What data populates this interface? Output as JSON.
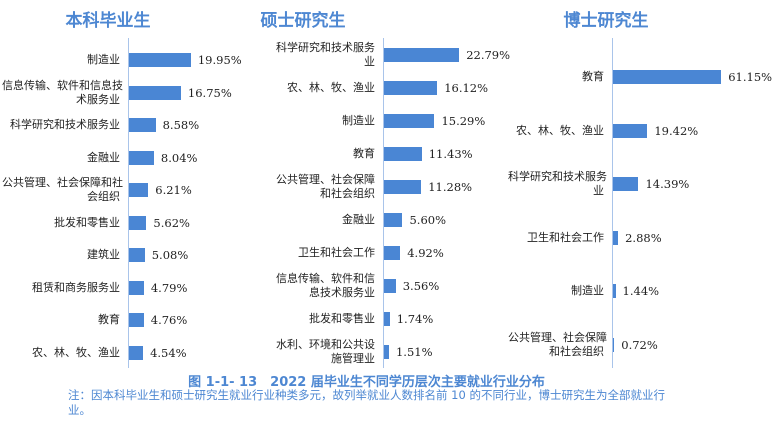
{
  "colors": {
    "bar": "#4a86d4",
    "title": "#4d87d2"
  },
  "chart_data": [
    {
      "type": "bar",
      "orientation": "horizontal",
      "title": "本科毕业生",
      "categories": [
        "制造业",
        "信息传输、软件和信息技术服务业",
        "科学研究和技术服务业",
        "金融业",
        "公共管理、社会保障和社会组织",
        "批发和零售业",
        "建筑业",
        "租赁和商务服务业",
        "教育",
        "农、林、牧、渔业"
      ],
      "values": [
        19.95,
        16.75,
        8.58,
        8.04,
        6.21,
        5.62,
        5.08,
        4.79,
        4.76,
        4.54
      ],
      "labels": [
        "19.95%",
        "16.75%",
        "8.58%",
        "8.04%",
        "6.21%",
        "5.62%",
        "5.08%",
        "4.79%",
        "4.76%",
        "4.54%"
      ],
      "unit": "%"
    },
    {
      "type": "bar",
      "orientation": "horizontal",
      "title": "硕士研究生",
      "categories": [
        "科学研究和技术服务业",
        "农、林、牧、渔业",
        "制造业",
        "教育",
        "公共管理、社会保障和社会组织",
        "金融业",
        "卫生和社会工作",
        "信息传输、软件和信息技术服务业",
        "批发和零售业",
        "水利、环境和公共设施管理业"
      ],
      "values": [
        22.79,
        16.12,
        15.29,
        11.43,
        11.28,
        5.6,
        4.92,
        3.56,
        1.74,
        1.51
      ],
      "labels": [
        "22.79%",
        "16.12%",
        "15.29%",
        "11.43%",
        "11.28%",
        "5.60%",
        "4.92%",
        "3.56%",
        "1.74%",
        "1.51%"
      ],
      "unit": "%"
    },
    {
      "type": "bar",
      "orientation": "horizontal",
      "title": "博士研究生",
      "categories": [
        "教育",
        "农、林、牧、渔业",
        "科学研究和技术服务业",
        "卫生和社会工作",
        "制造业",
        "公共管理、社会保障和社会组织"
      ],
      "values": [
        61.15,
        19.42,
        14.39,
        2.88,
        1.44,
        0.72
      ],
      "labels": [
        "61.15%",
        "19.42%",
        "14.39%",
        "2.88%",
        "1.44%",
        "0.72%"
      ],
      "unit": "%"
    }
  ],
  "caption": "图 1-1- 13　2022 届毕业生不同学历层次主要就业行业分布",
  "note": "注：因本科毕业生和硕士研究生就业行业种类多元，故列举就业人数排名前 10 的不同行业，博士研究生为全部就业行业。"
}
